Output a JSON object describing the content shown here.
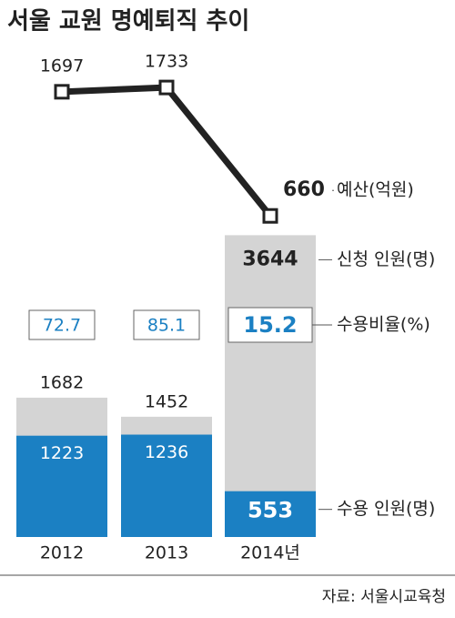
{
  "chart_data": {
    "type": "bar",
    "title": "서울 교원 명예퇴직 추이",
    "categories": [
      "2012",
      "2013",
      "2014년"
    ],
    "series": [
      {
        "name": "신청 인원(명)",
        "color": "#d4d4d4",
        "values": [
          1682,
          1452,
          3644
        ]
      },
      {
        "name": "수용 인원(명)",
        "color": "#1b80c3",
        "values": [
          1223,
          1236,
          553
        ]
      },
      {
        "name": "예산(억원)",
        "type": "line",
        "axis": "y2",
        "color": "#222222",
        "values": [
          1697,
          1733,
          660
        ]
      },
      {
        "name": "수용비율(%)",
        "type": "text",
        "color": "#1b80c3",
        "values": [
          72.7,
          85.1,
          15.2
        ]
      }
    ],
    "ylim": [
      0,
      4000
    ],
    "y2lim": [
      0,
      2000
    ],
    "source": "자료: 서울시교육청"
  }
}
